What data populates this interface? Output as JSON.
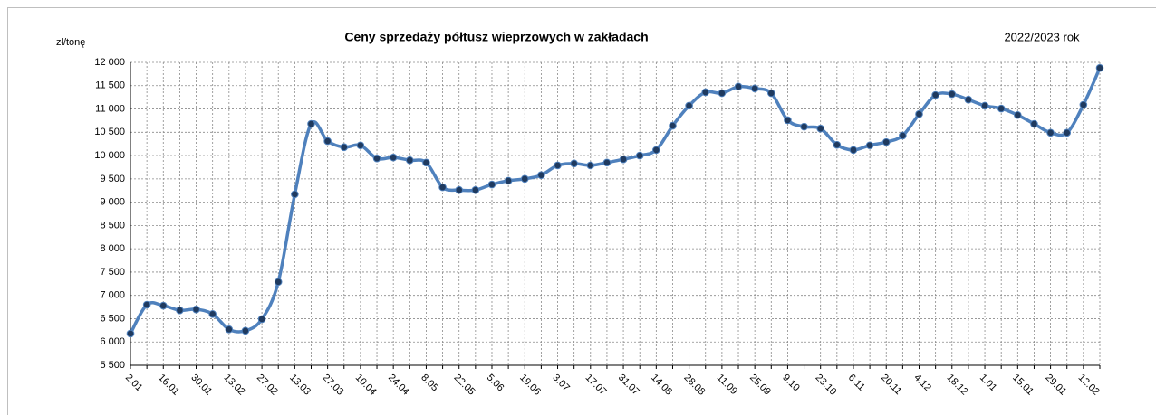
{
  "chart_data": {
    "type": "line",
    "title": "Ceny sprzedaży półtusz wieprzowych w zakładach",
    "subtitle": "2022/2023 rok",
    "y_label": "zł/tonę",
    "categories": [
      "2.01",
      null,
      "16.01",
      null,
      "30.01",
      null,
      "13.02",
      null,
      "27.02",
      null,
      "13.03",
      null,
      "27.03",
      null,
      "10.04",
      null,
      "24.04",
      null,
      "8.05",
      null,
      "22.05",
      null,
      "5.06",
      null,
      "19.06",
      null,
      "3.07",
      null,
      "17.07",
      null,
      "31.07",
      null,
      "14.08",
      null,
      "28.08",
      null,
      "11.09",
      null,
      "25.09",
      null,
      "9.10",
      null,
      "23.10",
      null,
      "6.11",
      null,
      "20.11",
      null,
      "4.12",
      null,
      "18.12",
      null,
      "1.01",
      null,
      "15.01",
      null,
      "29.01",
      null,
      "12.02",
      null
    ],
    "series": [
      {
        "name": "Ceny",
        "color": "#4f81bd",
        "marker_color": "#1f3a5f",
        "values": [
          6180,
          6800,
          6780,
          6680,
          6700,
          6600,
          6270,
          6240,
          6490,
          7290,
          9170,
          10680,
          10310,
          10180,
          10220,
          9940,
          9960,
          9900,
          9850,
          9320,
          9260,
          9260,
          9380,
          9460,
          9500,
          9580,
          9790,
          9830,
          9790,
          9850,
          9920,
          10000,
          10120,
          10640,
          11070,
          11360,
          11340,
          11480,
          11440,
          11340,
          10760,
          10620,
          10580,
          10230,
          10120,
          10220,
          10290,
          10430,
          10890,
          11300,
          11320,
          11200,
          11070,
          11010,
          10870,
          10680,
          10490,
          10490,
          11090,
          11880
        ]
      }
    ],
    "ylim": [
      5500,
      12000
    ],
    "yticks": [
      {
        "value": 5500,
        "label": "5 500"
      },
      {
        "value": 6000,
        "label": "6 000"
      },
      {
        "value": 6500,
        "label": "6 500"
      },
      {
        "value": 7000,
        "label": "7 000"
      },
      {
        "value": 7500,
        "label": "7 500"
      },
      {
        "value": 8000,
        "label": "8 000"
      },
      {
        "value": 8500,
        "label": "8 500"
      },
      {
        "value": 9000,
        "label": "9 000"
      },
      {
        "value": 9500,
        "label": "9 500"
      },
      {
        "value": 10000,
        "label": "10 000"
      },
      {
        "value": 10500,
        "label": "10 500"
      },
      {
        "value": 11000,
        "label": "11 000"
      },
      {
        "value": 11500,
        "label": "11 500"
      },
      {
        "value": 12000,
        "label": "12 000"
      }
    ],
    "grid": true
  }
}
